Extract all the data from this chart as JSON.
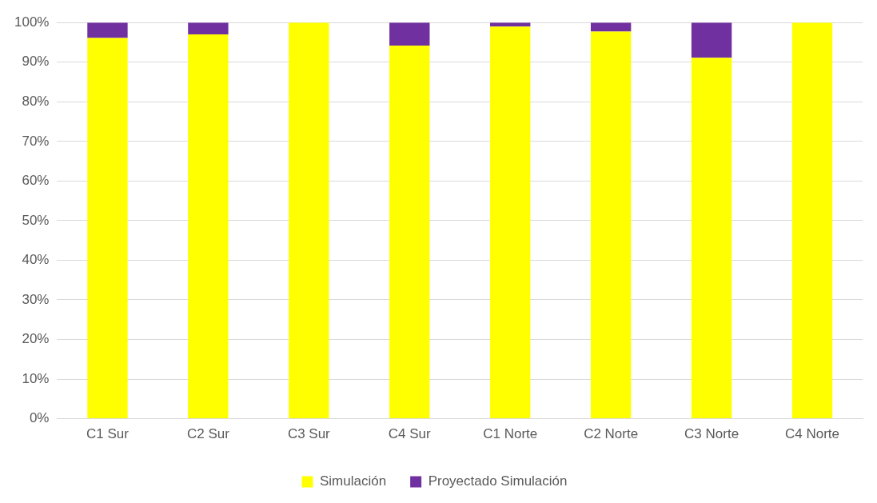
{
  "chart_data": {
    "type": "bar",
    "stacked": true,
    "categories": [
      "C1 Sur",
      "C2 Sur",
      "C3 Sur",
      "C4 Sur",
      "C1 Norte",
      "C2 Norte",
      "C3 Norte",
      "C4 Norte"
    ],
    "series": [
      {
        "name": "Simulación",
        "color": "#ffff00",
        "values": [
          96.1,
          97.0,
          100,
          94.2,
          99.0,
          97.7,
          91.1,
          100
        ]
      },
      {
        "name": "Proyectado Simulación",
        "color": "#7030a0",
        "values": [
          3.9,
          3.0,
          0,
          5.8,
          1.0,
          2.3,
          8.9,
          0
        ]
      }
    ],
    "ylim": [
      0,
      100
    ],
    "yticks": [
      {
        "value": 0,
        "label": "0%"
      },
      {
        "value": 10,
        "label": "10%"
      },
      {
        "value": 20,
        "label": "20%"
      },
      {
        "value": 30,
        "label": "30%"
      },
      {
        "value": 40,
        "label": "40%"
      },
      {
        "value": 50,
        "label": "50%"
      },
      {
        "value": 60,
        "label": "60%"
      },
      {
        "value": 70,
        "label": "70%"
      },
      {
        "value": 80,
        "label": "80%"
      },
      {
        "value": 90,
        "label": "90%"
      },
      {
        "value": 100,
        "label": "100%"
      }
    ],
    "grid": "y",
    "legend": "bottom"
  }
}
